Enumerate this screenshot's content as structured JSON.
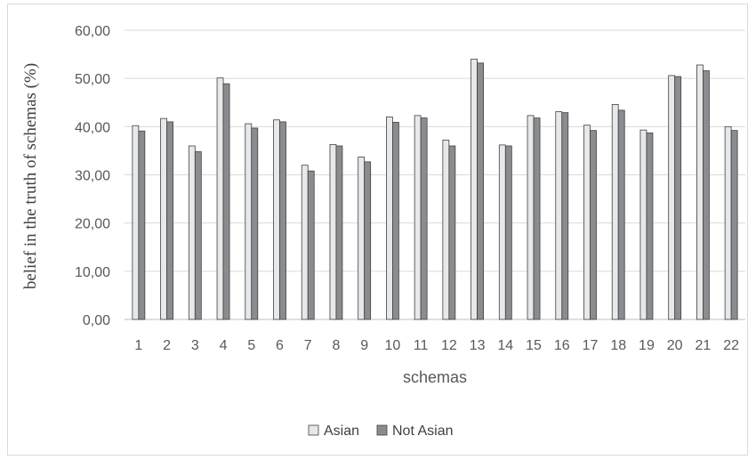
{
  "chart_data": {
    "type": "bar",
    "title": "",
    "xlabel": "schemas",
    "ylabel": "belief in the truth of schemas (%)",
    "ylim": [
      0,
      60
    ],
    "yticks": [
      "0,00",
      "10,00",
      "20,00",
      "30,00",
      "40,00",
      "50,00",
      "60,00"
    ],
    "grid": true,
    "legend_position": "bottom",
    "categories": [
      "1",
      "2",
      "3",
      "4",
      "5",
      "6",
      "7",
      "8",
      "9",
      "10",
      "11",
      "12",
      "13",
      "14",
      "15",
      "16",
      "17",
      "18",
      "19",
      "20",
      "21",
      "22"
    ],
    "series": [
      {
        "name": "Asian",
        "color": "#e6e8ea",
        "values": [
          40.2,
          41.7,
          36.0,
          50.1,
          40.6,
          41.4,
          32.0,
          36.3,
          33.7,
          42.0,
          42.3,
          37.2,
          54.0,
          36.2,
          42.3,
          43.1,
          40.3,
          44.6,
          39.3,
          50.6,
          52.8,
          40.0
        ]
      },
      {
        "name": "Not Asian",
        "color": "#8a8c8f",
        "values": [
          39.1,
          41.0,
          34.8,
          48.9,
          39.7,
          41.0,
          30.8,
          36.0,
          32.7,
          40.9,
          41.8,
          36.0,
          53.2,
          36.0,
          41.8,
          42.9,
          39.2,
          43.4,
          38.7,
          50.4,
          51.6,
          39.2
        ]
      }
    ]
  }
}
